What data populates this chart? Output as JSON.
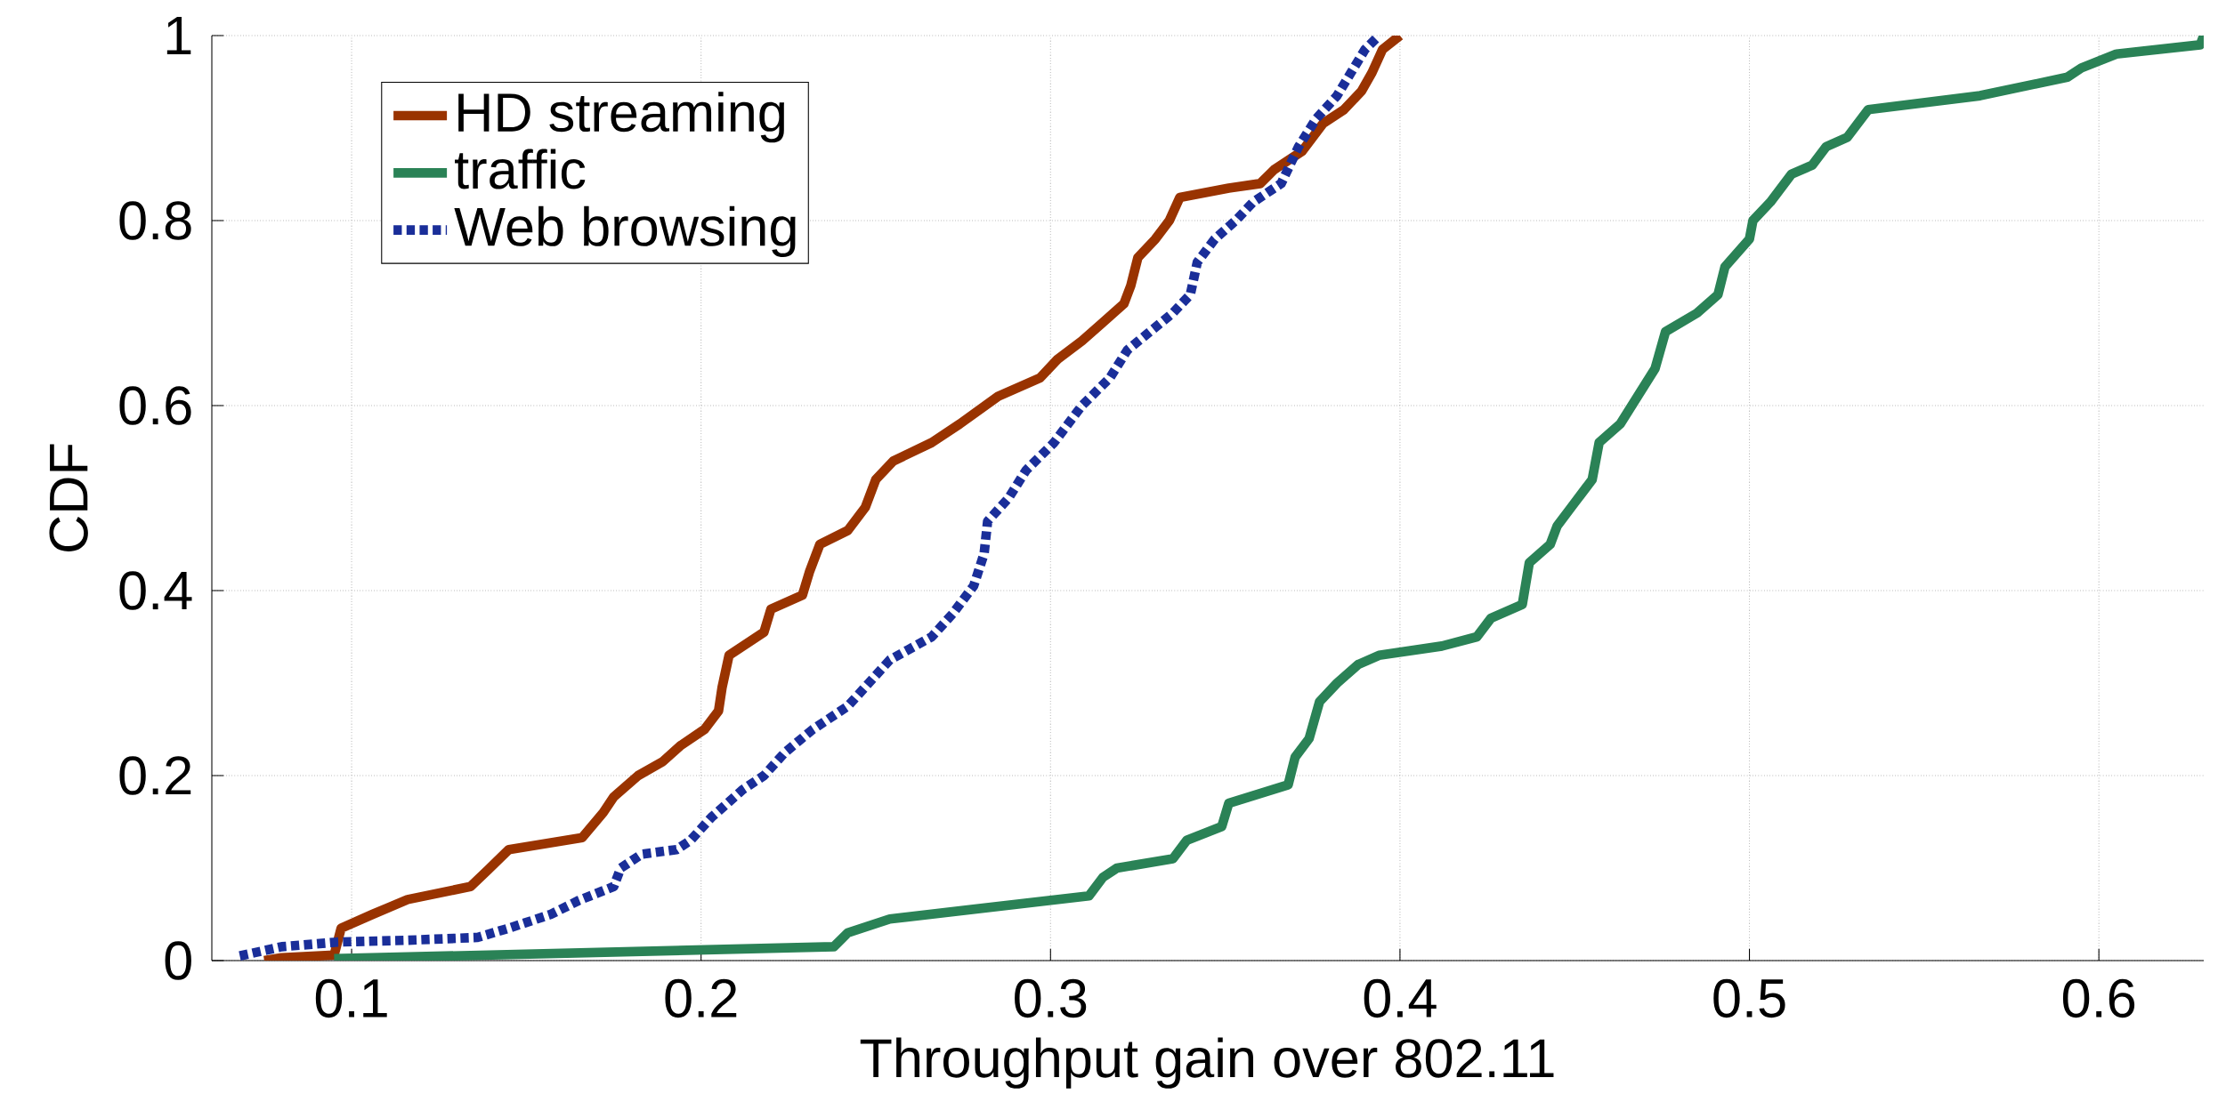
{
  "chart_data": {
    "type": "line",
    "xlabel": "Throughput gain over 802.11",
    "ylabel": "CDF",
    "xlim": [
      0.06,
      0.63
    ],
    "ylim": [
      0,
      1
    ],
    "xticks": [
      0.1,
      0.2,
      0.3,
      0.4,
      0.5,
      0.6
    ],
    "yticks": [
      0,
      0.2,
      0.4,
      0.6,
      0.8,
      1
    ],
    "grid": true,
    "legend": "top left",
    "series": [
      {
        "name": "HD streaming",
        "color": "#993300",
        "line_style": "solid",
        "x": [
          0.075,
          0.08,
          0.095,
          0.097,
          0.106,
          0.116,
          0.134,
          0.139,
          0.145,
          0.166,
          0.172,
          0.175,
          0.182,
          0.189,
          0.194,
          0.201,
          0.205,
          0.206,
          0.208,
          0.218,
          0.22,
          0.229,
          0.231,
          0.234,
          0.242,
          0.247,
          0.25,
          0.255,
          0.266,
          0.274,
          0.285,
          0.297,
          0.302,
          0.309,
          0.315,
          0.321,
          0.323,
          0.325,
          0.33,
          0.334,
          0.337,
          0.351,
          0.36,
          0.364,
          0.372,
          0.378,
          0.384,
          0.389,
          0.392,
          0.395,
          0.4
        ],
        "values": [
          0,
          0.003,
          0.006,
          0.035,
          0.05,
          0.066,
          0.08,
          0.098,
          0.12,
          0.133,
          0.16,
          0.177,
          0.2,
          0.215,
          0.232,
          0.25,
          0.27,
          0.295,
          0.33,
          0.355,
          0.38,
          0.395,
          0.42,
          0.45,
          0.465,
          0.49,
          0.52,
          0.54,
          0.56,
          0.58,
          0.61,
          0.63,
          0.65,
          0.67,
          0.69,
          0.71,
          0.73,
          0.76,
          0.78,
          0.8,
          0.825,
          0.835,
          0.84,
          0.855,
          0.875,
          0.905,
          0.92,
          0.94,
          0.96,
          0.985,
          1.0
        ]
      },
      {
        "name": "traffic",
        "color": "#2a8256",
        "line_style": "solid",
        "x": [
          0.095,
          0.238,
          0.242,
          0.254,
          0.311,
          0.315,
          0.319,
          0.335,
          0.339,
          0.349,
          0.351,
          0.368,
          0.37,
          0.374,
          0.377,
          0.382,
          0.388,
          0.394,
          0.412,
          0.422,
          0.426,
          0.435,
          0.437,
          0.443,
          0.445,
          0.449,
          0.455,
          0.457,
          0.463,
          0.468,
          0.473,
          0.476,
          0.485,
          0.491,
          0.493,
          0.5,
          0.501,
          0.506,
          0.512,
          0.518,
          0.522,
          0.528,
          0.534,
          0.566,
          0.591,
          0.595,
          0.605,
          0.629,
          0.63
        ],
        "values": [
          0.002,
          0.015,
          0.03,
          0.045,
          0.07,
          0.09,
          0.1,
          0.11,
          0.13,
          0.145,
          0.17,
          0.19,
          0.22,
          0.24,
          0.28,
          0.3,
          0.32,
          0.33,
          0.34,
          0.35,
          0.37,
          0.385,
          0.43,
          0.45,
          0.47,
          0.49,
          0.52,
          0.56,
          0.58,
          0.61,
          0.64,
          0.68,
          0.7,
          0.72,
          0.75,
          0.78,
          0.8,
          0.82,
          0.85,
          0.86,
          0.88,
          0.89,
          0.92,
          0.935,
          0.955,
          0.965,
          0.98,
          0.99,
          1.0
        ]
      },
      {
        "name": "Web browsing",
        "color": "#1a2e99",
        "line_style": "dotted",
        "x": [
          0.068,
          0.08,
          0.096,
          0.116,
          0.136,
          0.145,
          0.157,
          0.165,
          0.175,
          0.177,
          0.183,
          0.193,
          0.197,
          0.203,
          0.212,
          0.218,
          0.224,
          0.232,
          0.242,
          0.248,
          0.254,
          0.266,
          0.272,
          0.278,
          0.281,
          0.282,
          0.288,
          0.293,
          0.301,
          0.309,
          0.317,
          0.322,
          0.335,
          0.34,
          0.342,
          0.347,
          0.353,
          0.358,
          0.366,
          0.371,
          0.376,
          0.382,
          0.386,
          0.39,
          0.394
        ],
        "values": [
          0.005,
          0.015,
          0.02,
          0.022,
          0.025,
          0.035,
          0.05,
          0.065,
          0.08,
          0.1,
          0.115,
          0.12,
          0.13,
          0.155,
          0.185,
          0.2,
          0.225,
          0.25,
          0.275,
          0.3,
          0.325,
          0.35,
          0.375,
          0.405,
          0.44,
          0.475,
          0.5,
          0.53,
          0.56,
          0.6,
          0.63,
          0.66,
          0.7,
          0.72,
          0.755,
          0.78,
          0.8,
          0.82,
          0.84,
          0.88,
          0.91,
          0.935,
          0.96,
          0.985,
          1.0
        ]
      }
    ]
  }
}
